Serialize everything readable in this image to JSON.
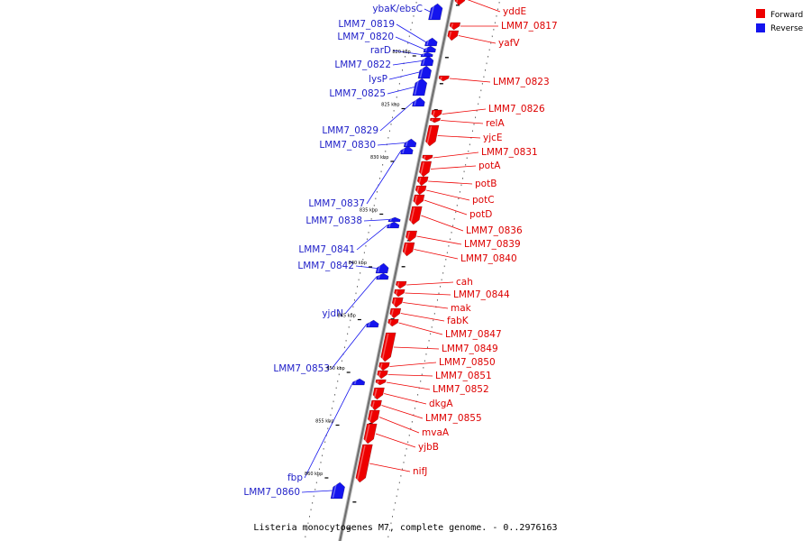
{
  "caption": "Listeria monocytogenes M7, complete genome. - 0..2976163",
  "legend": [
    {
      "label": "Forward",
      "color": "#ee0000"
    },
    {
      "label": "Reverse",
      "color": "#1414ee"
    }
  ],
  "colors": {
    "forward": "#ee0000",
    "reverse": "#1414ee",
    "forward_label": "#dd0000",
    "reverse_label": "#1f1fc8"
  },
  "kbp_marks": [
    {
      "kbp": 820,
      "label": "820 kbp"
    },
    {
      "kbp": 825,
      "label": "825 kbp"
    },
    {
      "kbp": 830,
      "label": "830 kbp"
    },
    {
      "kbp": 835,
      "label": "835 kbp"
    },
    {
      "kbp": 840,
      "label": "840 kbp"
    },
    {
      "kbp": 845,
      "label": "845 kbp"
    },
    {
      "kbp": 850,
      "label": "850 kbp"
    },
    {
      "kbp": 855,
      "label": "855 kbp"
    },
    {
      "kbp": 860,
      "label": "860 kbp"
    }
  ],
  "forward_genes": [
    "yddE",
    "LMM7_0817",
    "yafV",
    "LMM7_0823",
    "LMM7_0826",
    "relA",
    "yjcE",
    "LMM7_0831",
    "potA",
    "potB",
    "potC",
    "potD",
    "LMM7_0836",
    "LMM7_0839",
    "LMM7_0840",
    "cah",
    "LMM7_0844",
    "mak",
    "fabK",
    "LMM7_0847",
    "LMM7_0849",
    "LMM7_0850",
    "LMM7_0851",
    "LMM7_0852",
    "dkgA",
    "LMM7_0855",
    "mvaA",
    "yjbB",
    "nifJ"
  ],
  "reverse_genes": [
    "ybaK/ebsC",
    "LMM7_0819",
    "LMM7_0820",
    "rarD",
    "LMM7_0822",
    "lysP",
    "LMM7_0825",
    "LMM7_0829",
    "LMM7_0830",
    "LMM7_0837",
    "LMM7_0838",
    "LMM7_0841",
    "LMM7_0842",
    "yjdN",
    "LMM7_0853",
    "fbp",
    "LMM7_0860"
  ]
}
